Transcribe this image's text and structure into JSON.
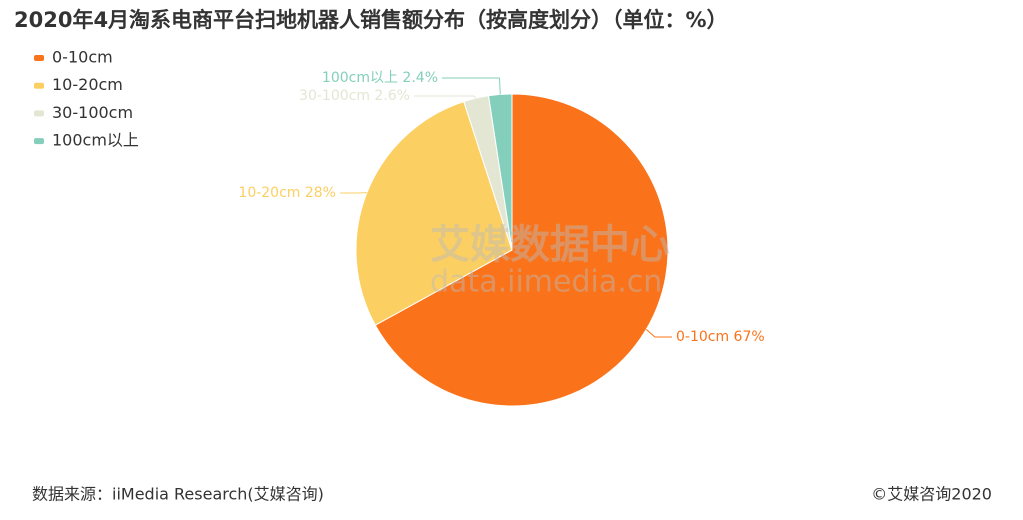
{
  "chart_data": {
    "type": "pie",
    "title": "2020年4月淘系电商平台扫地机器人销售额分布（按高度划分）（单位：%）",
    "categories": [
      "0-10cm",
      "10-20cm",
      "30-100cm",
      "100cm以上"
    ],
    "values": [
      67,
      28,
      2.6,
      2.4
    ],
    "value_labels": [
      "0-10cm 67%",
      "10-20cm 28%",
      "30-100cm 2.6%",
      "100cm以上 2.4%"
    ],
    "colors": [
      "#fa731a",
      "#fccf62",
      "#e4e6d4",
      "#83cfbb"
    ],
    "legend": "top-left",
    "watermark": [
      "艾媒数据中心",
      "data.iimedia.cn"
    ],
    "source": "数据来源：iiMedia Research(艾媒咨询)",
    "copyright": "©艾媒咨询2020"
  }
}
